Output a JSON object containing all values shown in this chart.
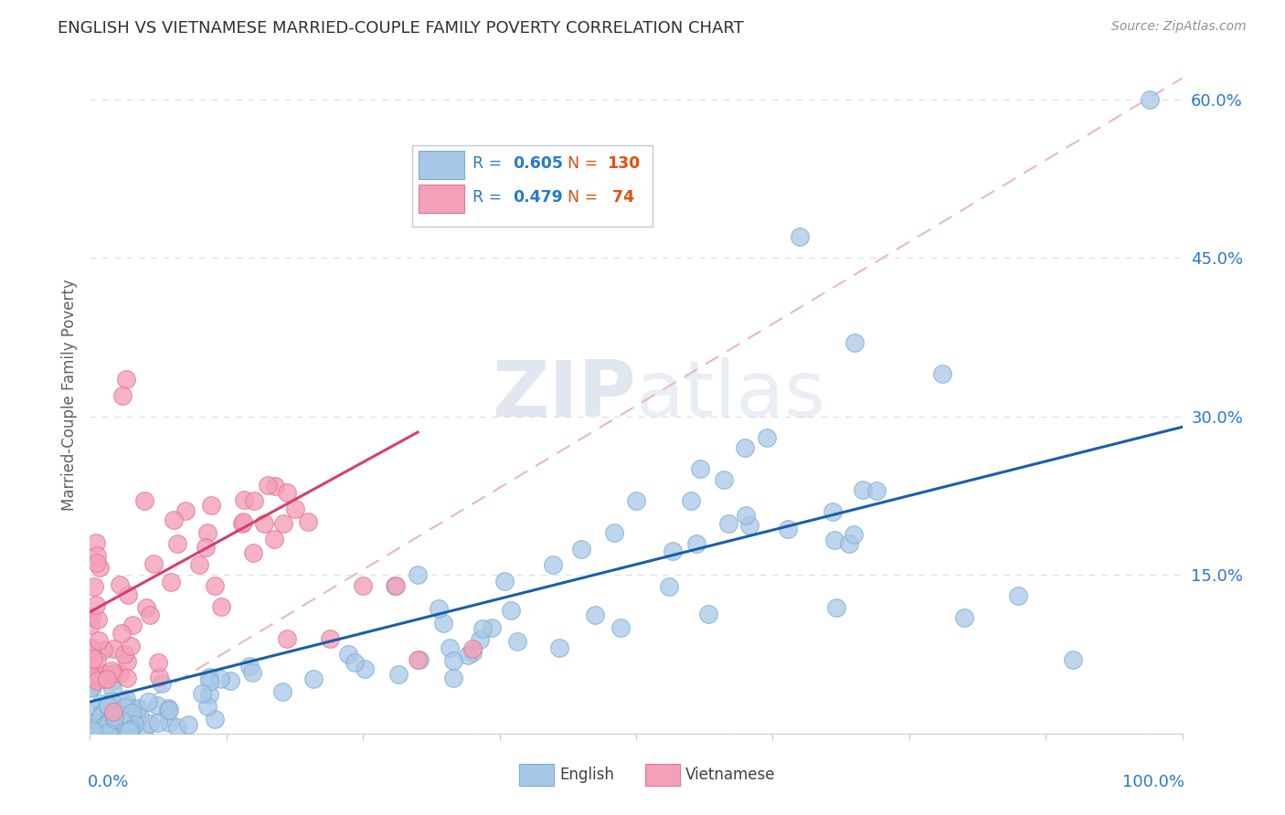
{
  "title": "ENGLISH VS VIETNAMESE MARRIED-COUPLE FAMILY POVERTY CORRELATION CHART",
  "source": "Source: ZipAtlas.com",
  "ylabel": "Married-Couple Family Poverty",
  "english_R": 0.605,
  "english_N": 130,
  "vietnamese_R": 0.479,
  "vietnamese_N": 74,
  "english_color": "#a8c8e8",
  "english_edge_color": "#7aabcf",
  "vietnamese_color": "#f4a0b8",
  "vietnamese_edge_color": "#e07898",
  "english_line_color": "#1a5fa8",
  "vietnamese_line_color": "#d44070",
  "ref_line_color": "#e8b8c0",
  "background_color": "#ffffff",
  "legend_text_R_color": "#2878d0",
  "legend_text_N_color": "#e05010",
  "ytick_color": "#2878d0",
  "xlabel_color": "#2878d0",
  "ylabel_color": "#606060",
  "grid_color": "#d8dce8",
  "title_color": "#303030",
  "source_color": "#909090",
  "watermark_color": "#dde5f0",
  "eng_line_start_x": 0.0,
  "eng_line_start_y": 0.03,
  "eng_line_end_x": 1.0,
  "eng_line_end_y": 0.29,
  "vie_line_start_x": 0.0,
  "vie_line_start_y": 0.115,
  "vie_line_end_x": 0.3,
  "vie_line_end_y": 0.285,
  "ref_line_start_x": 0.0,
  "ref_line_start_y": 0.0,
  "ref_line_end_x": 1.0,
  "ref_line_end_y": 0.62,
  "xmin": 0.0,
  "xmax": 1.0,
  "ymin": 0.0,
  "ymax": 0.64,
  "yticks": [
    0.0,
    0.15,
    0.3,
    0.45,
    0.6
  ],
  "ytick_labels": [
    "",
    "15.0%",
    "30.0%",
    "45.0%",
    "60.0%"
  ]
}
